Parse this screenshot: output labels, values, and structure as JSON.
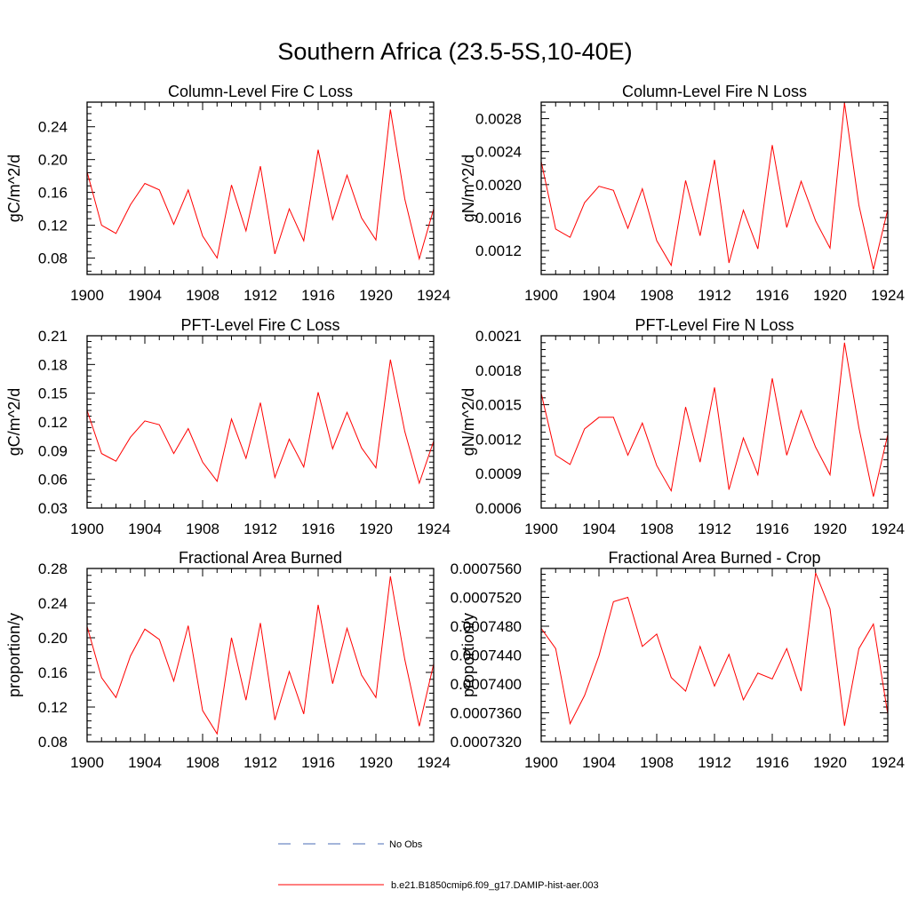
{
  "figure": {
    "title": "Southern Africa (23.5-5S,10-40E)"
  },
  "legend": {
    "items": [
      {
        "label": "No Obs",
        "color": "#4a6bb5",
        "style": "dashed"
      },
      {
        "label": "b.e21.B1850cmip6.f09_g17.DAMIP-hist-aer.003",
        "color": "#ff0000",
        "style": "solid"
      }
    ]
  },
  "chart_data": [
    {
      "type": "line",
      "title": "Column-Level Fire C Loss",
      "ylabel": "gC/m^2/d",
      "xlabel": "",
      "xlim": [
        1900,
        1924
      ],
      "ylim": [
        0.06,
        0.27
      ],
      "xticks": [
        "1900",
        "1904",
        "1908",
        "1912",
        "1916",
        "1920",
        "1924"
      ],
      "yticks": [
        0.08,
        0.12,
        0.16,
        0.2,
        0.24
      ],
      "ytick_labels": [
        "0.08",
        "0.12",
        "0.16",
        "0.20",
        "0.24"
      ],
      "x": [
        1900,
        1901,
        1902,
        1903,
        1904,
        1905,
        1906,
        1907,
        1908,
        1909,
        1910,
        1911,
        1912,
        1913,
        1914,
        1915,
        1916,
        1917,
        1918,
        1919,
        1920,
        1921,
        1922,
        1923,
        1924
      ],
      "series": [
        {
          "name": "b.e21.B1850cmip6.f09_g17.DAMIP-hist-aer.003",
          "color": "#ff0000",
          "values": [
            0.185,
            0.12,
            0.11,
            0.145,
            0.171,
            0.163,
            0.121,
            0.163,
            0.107,
            0.08,
            0.169,
            0.113,
            0.192,
            0.085,
            0.14,
            0.101,
            0.212,
            0.127,
            0.181,
            0.129,
            0.102,
            0.261,
            0.152,
            0.079,
            0.14
          ]
        }
      ]
    },
    {
      "type": "line",
      "title": "Column-Level Fire N Loss",
      "ylabel": "gN/m^2/d",
      "xlabel": "",
      "xlim": [
        1900,
        1924
      ],
      "ylim": [
        0.00091,
        0.003
      ],
      "xticks": [
        "1900",
        "1904",
        "1908",
        "1912",
        "1916",
        "1920",
        "1924"
      ],
      "yticks": [
        0.0012,
        0.0016,
        0.002,
        0.0024,
        0.0028
      ],
      "ytick_labels": [
        "0.0012",
        "0.0016",
        "0.0020",
        "0.0024",
        "0.0028"
      ],
      "x": [
        1900,
        1901,
        1902,
        1903,
        1904,
        1905,
        1906,
        1907,
        1908,
        1909,
        1910,
        1911,
        1912,
        1913,
        1914,
        1915,
        1916,
        1917,
        1918,
        1919,
        1920,
        1921,
        1922,
        1923,
        1924
      ],
      "series": [
        {
          "name": "b.e21.B1850cmip6.f09_g17.DAMIP-hist-aer.003",
          "color": "#ff0000",
          "values": [
            0.00228,
            0.00146,
            0.00136,
            0.00178,
            0.00198,
            0.00193,
            0.00147,
            0.00195,
            0.00132,
            0.00102,
            0.00205,
            0.00138,
            0.0023,
            0.00105,
            0.00169,
            0.00122,
            0.00248,
            0.00148,
            0.00204,
            0.00156,
            0.00123,
            0.00299,
            0.00175,
            0.00097,
            0.0017
          ]
        }
      ]
    },
    {
      "type": "line",
      "title": "PFT-Level Fire C Loss",
      "ylabel": "gC/m^2/d",
      "xlabel": "",
      "xlim": [
        1900,
        1924
      ],
      "ylim": [
        0.03,
        0.21
      ],
      "xticks": [
        "1900",
        "1904",
        "1908",
        "1912",
        "1916",
        "1920",
        "1924"
      ],
      "yticks": [
        0.03,
        0.06,
        0.09,
        0.12,
        0.15,
        0.18,
        0.21
      ],
      "ytick_labels": [
        "0.03",
        "0.06",
        "0.09",
        "0.12",
        "0.15",
        "0.18",
        "0.21"
      ],
      "x": [
        1900,
        1901,
        1902,
        1903,
        1904,
        1905,
        1906,
        1907,
        1908,
        1909,
        1910,
        1911,
        1912,
        1913,
        1914,
        1915,
        1916,
        1917,
        1918,
        1919,
        1920,
        1921,
        1922,
        1923,
        1924
      ],
      "series": [
        {
          "name": "b.e21.B1850cmip6.f09_g17.DAMIP-hist-aer.003",
          "color": "#ff0000",
          "values": [
            0.132,
            0.087,
            0.079,
            0.104,
            0.121,
            0.117,
            0.087,
            0.113,
            0.078,
            0.058,
            0.123,
            0.082,
            0.14,
            0.062,
            0.102,
            0.073,
            0.151,
            0.092,
            0.13,
            0.093,
            0.072,
            0.185,
            0.11,
            0.056,
            0.1
          ]
        }
      ]
    },
    {
      "type": "line",
      "title": "PFT-Level Fire N Loss",
      "ylabel": "gN/m^2/d",
      "xlabel": "",
      "xlim": [
        1900,
        1924
      ],
      "ylim": [
        0.0006,
        0.0021
      ],
      "xticks": [
        "1900",
        "1904",
        "1908",
        "1912",
        "1916",
        "1920",
        "1924"
      ],
      "yticks": [
        0.0006,
        0.0009,
        0.0012,
        0.0015,
        0.0018,
        0.0021
      ],
      "ytick_labels": [
        "0.0006",
        "0.0009",
        "0.0012",
        "0.0015",
        "0.0018",
        "0.0021"
      ],
      "x": [
        1900,
        1901,
        1902,
        1903,
        1904,
        1905,
        1906,
        1907,
        1908,
        1909,
        1910,
        1911,
        1912,
        1913,
        1914,
        1915,
        1916,
        1917,
        1918,
        1919,
        1920,
        1921,
        1922,
        1923,
        1924
      ],
      "series": [
        {
          "name": "b.e21.B1850cmip6.f09_g17.DAMIP-hist-aer.003",
          "color": "#ff0000",
          "values": [
            0.0016,
            0.00106,
            0.00098,
            0.00129,
            0.00139,
            0.00139,
            0.00106,
            0.00134,
            0.00097,
            0.00075,
            0.00148,
            0.001,
            0.00165,
            0.00076,
            0.00121,
            0.00089,
            0.00173,
            0.00106,
            0.00145,
            0.00113,
            0.00089,
            0.00204,
            0.0013,
            0.0007,
            0.00124
          ]
        }
      ]
    },
    {
      "type": "line",
      "title": "Fractional Area Burned",
      "ylabel": "proportion/y",
      "xlabel": "",
      "xlim": [
        1900,
        1924
      ],
      "ylim": [
        0.08,
        0.28
      ],
      "xticks": [
        "1900",
        "1904",
        "1908",
        "1912",
        "1916",
        "1920",
        "1924"
      ],
      "yticks": [
        0.08,
        0.12,
        0.16,
        0.2,
        0.24,
        0.28
      ],
      "ytick_labels": [
        "0.08",
        "0.12",
        "0.16",
        "0.20",
        "0.24",
        "0.28"
      ],
      "x": [
        1900,
        1901,
        1902,
        1903,
        1904,
        1905,
        1906,
        1907,
        1908,
        1909,
        1910,
        1911,
        1912,
        1913,
        1914,
        1915,
        1916,
        1917,
        1918,
        1919,
        1920,
        1921,
        1922,
        1923,
        1924
      ],
      "series": [
        {
          "name": "b.e21.B1850cmip6.f09_g17.DAMIP-hist-aer.003",
          "color": "#ff0000",
          "values": [
            0.213,
            0.154,
            0.131,
            0.179,
            0.21,
            0.198,
            0.15,
            0.214,
            0.116,
            0.089,
            0.2,
            0.128,
            0.217,
            0.105,
            0.161,
            0.112,
            0.238,
            0.147,
            0.211,
            0.157,
            0.131,
            0.271,
            0.175,
            0.098,
            0.17
          ]
        }
      ]
    },
    {
      "type": "line",
      "title": "Fractional Area Burned - Crop",
      "ylabel": "proportion/y",
      "xlabel": "",
      "xlim": [
        1900,
        1924
      ],
      "ylim": [
        0.000732,
        0.000756
      ],
      "xticks": [
        "1900",
        "1904",
        "1908",
        "1912",
        "1916",
        "1920",
        "1924"
      ],
      "yticks": [
        0.000732,
        0.000736,
        0.00074,
        0.000744,
        0.000748,
        0.000752,
        0.000756
      ],
      "ytick_labels": [
        "0.0007320",
        "0.0007360",
        "0.0007400",
        "0.0007440",
        "0.0007480",
        "0.0007520",
        "0.0007560"
      ],
      "x": [
        1900,
        1901,
        1902,
        1903,
        1904,
        1905,
        1906,
        1907,
        1908,
        1909,
        1910,
        1911,
        1912,
        1913,
        1914,
        1915,
        1916,
        1917,
        1918,
        1919,
        1920,
        1921,
        1922,
        1923,
        1924
      ],
      "series": [
        {
          "name": "b.e21.B1850cmip6.f09_g17.DAMIP-hist-aer.003",
          "color": "#ff0000",
          "values": [
            0.0007477,
            0.0007449,
            0.0007345,
            0.0007384,
            0.0007439,
            0.0007514,
            0.000752,
            0.0007452,
            0.0007469,
            0.0007409,
            0.000739,
            0.0007452,
            0.0007397,
            0.0007441,
            0.0007378,
            0.0007415,
            0.0007407,
            0.0007449,
            0.000739,
            0.0007554,
            0.0007504,
            0.0007342,
            0.0007449,
            0.0007483,
            0.0007358
          ]
        }
      ]
    }
  ]
}
